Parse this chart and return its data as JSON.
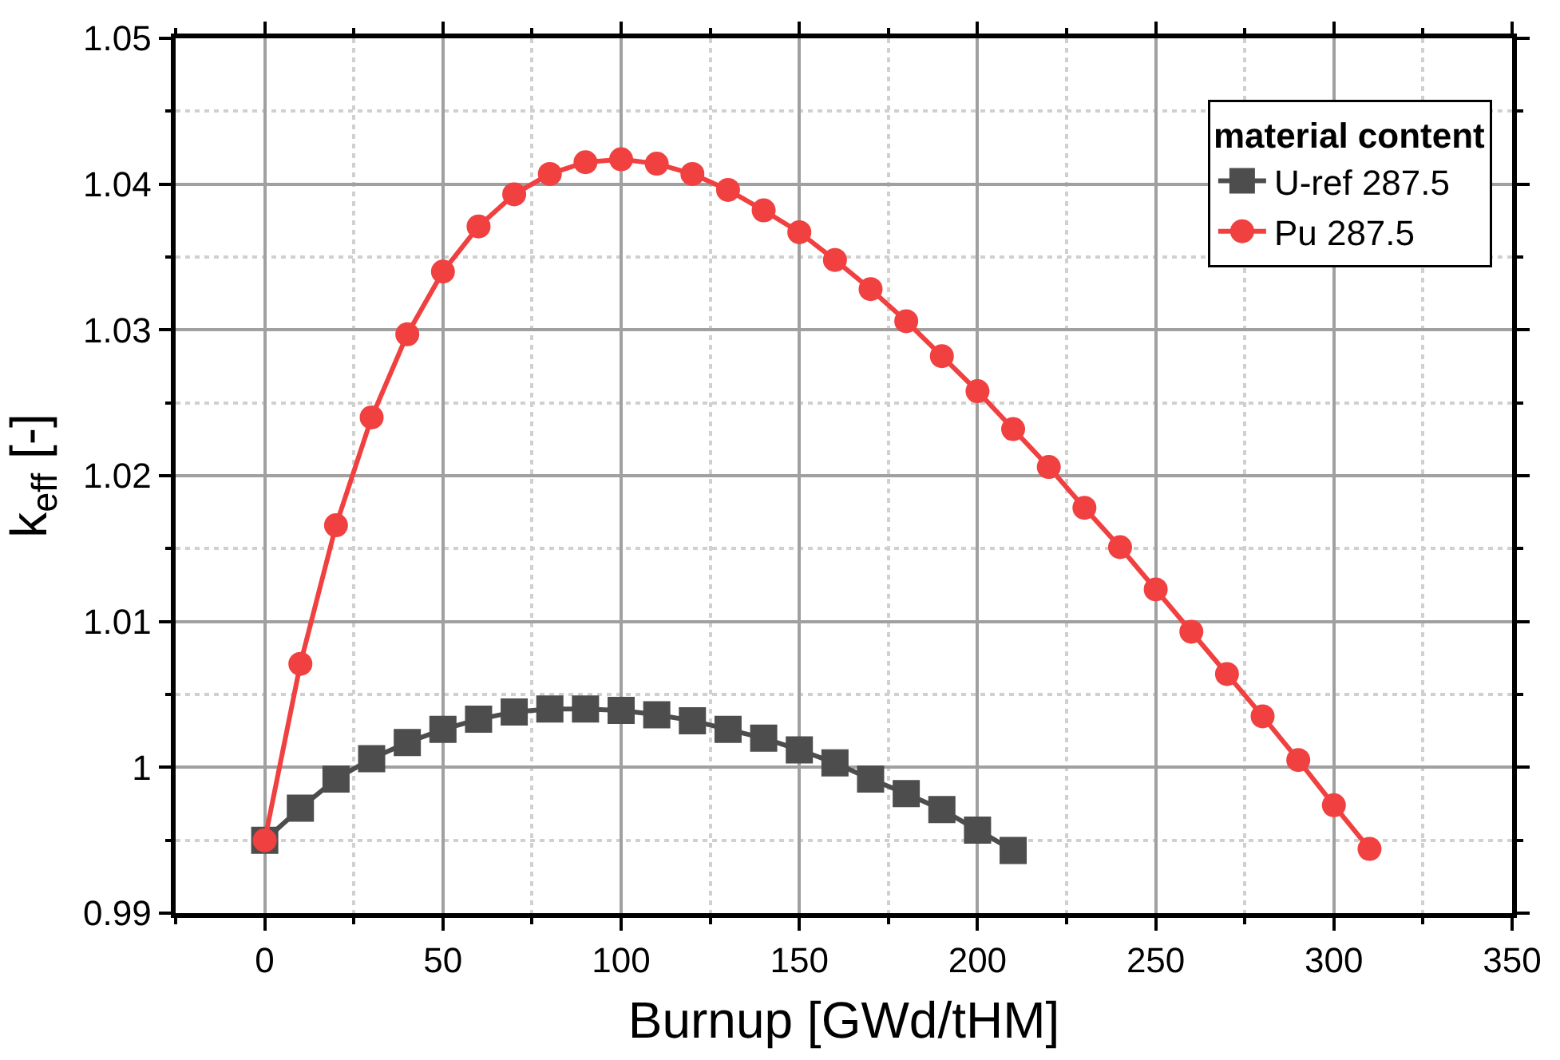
{
  "chart_data": {
    "type": "line",
    "xlabel": "Burnup [GWd/tHM]",
    "ylabel": "k$_{eff}$ [-]",
    "legend_title": "material content",
    "xlim": [
      -25,
      350
    ],
    "xticks": [
      0,
      50,
      100,
      150,
      200,
      250,
      300,
      350
    ],
    "ylim": [
      0.99,
      1.05
    ],
    "yticks": [
      0.99,
      1,
      1.01,
      1.02,
      1.03,
      1.04,
      1.05
    ],
    "grid": true,
    "legend": "top right",
    "line_style": "solid",
    "series": [
      {
        "name": "U-ref 287.5",
        "color": "#4d4d4d",
        "marker": "square",
        "x": [
          0,
          10,
          20,
          30,
          40,
          50,
          60,
          70,
          80,
          90,
          100,
          110,
          120,
          130,
          140,
          150,
          160,
          170,
          180,
          190,
          200,
          210
        ],
        "values": [
          0.995,
          0.9972,
          0.9992,
          1.0006,
          1.0017,
          1.0026,
          1.0033,
          1.0038,
          1.004,
          1.004,
          1.0039,
          1.0036,
          1.0032,
          1.0026,
          1.002,
          1.0012,
          1.0003,
          0.9992,
          0.9982,
          0.9971,
          0.9957,
          0.9943
        ]
      },
      {
        "name": "Pu 287.5",
        "color": "#f04040",
        "marker": "circle",
        "x": [
          0,
          10,
          20,
          30,
          40,
          50,
          60,
          70,
          80,
          90,
          100,
          110,
          120,
          130,
          140,
          150,
          160,
          170,
          180,
          190,
          200,
          210,
          220,
          230,
          240,
          250,
          260,
          270,
          280,
          290,
          300,
          310
        ],
        "values": [
          0.995,
          1.0071,
          1.0166,
          1.024,
          1.0297,
          1.034,
          1.0371,
          1.0393,
          1.0407,
          1.0415,
          1.0417,
          1.0414,
          1.0407,
          1.0396,
          1.0382,
          1.0367,
          1.0348,
          1.0328,
          1.0306,
          1.0282,
          1.0258,
          1.0232,
          1.0206,
          1.0178,
          1.0151,
          1.0122,
          1.0093,
          1.0064,
          1.0035,
          1.0005,
          0.9974,
          0.9944
        ]
      }
    ]
  }
}
